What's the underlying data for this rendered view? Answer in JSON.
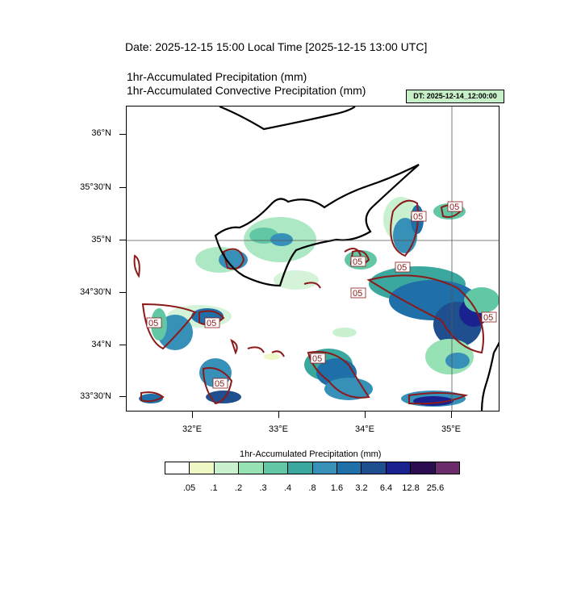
{
  "header": {
    "date_title": "Date: 2025-12-15  15:00 Local Time [2025-12-15  13:00 UTC]",
    "title_precip": "1hr-Accumulated Precipitation   (mm)",
    "title_conv": "1hr-Accumulated Convective Precipitation   (mm)",
    "dt_label": "DT: 2025-12-14_12:00:00"
  },
  "map": {
    "lat_labels": [
      "36°N",
      "35°30'N",
      "35°N",
      "34°30'N",
      "34°N",
      "33°30'N"
    ],
    "lon_labels": [
      "32°E",
      "33°E",
      "34°E",
      "35°E"
    ],
    "contour_labels": [
      "05",
      "05",
      "05",
      "05",
      "05",
      "05",
      "05",
      "05",
      "05",
      "05"
    ]
  },
  "colorbar": {
    "title": "1hr-Accumulated Precipitation  (mm)",
    "labels": [
      ".05",
      ".1",
      ".2",
      ".3",
      ".4",
      ".8",
      "1.6",
      "3.2",
      "6.4",
      "12.8",
      "25.6"
    ],
    "colors": [
      "#ffffff",
      "#edf8c4",
      "#c9f0cf",
      "#97e2b4",
      "#62c7a4",
      "#3aa89e",
      "#3690b8",
      "#1f6fa8",
      "#1f4f8f",
      "#1a228f",
      "#2b0e4f",
      "#6a2d6a"
    ]
  }
}
